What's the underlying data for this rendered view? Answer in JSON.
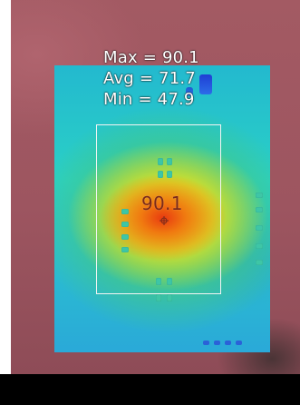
{
  "stats": {
    "max": "Max = 90.1",
    "avg": "Avg = 71.7",
    "min": "Min = 47.9"
  },
  "spot": {
    "value": "90.1"
  },
  "colors": {
    "background": "#a35a63",
    "roi_border": "#f4f4f4",
    "hot_core": "#e93a10",
    "cool_board": "#2ab9d2"
  },
  "icons": {
    "spot_marker": "crosshair-icon"
  }
}
